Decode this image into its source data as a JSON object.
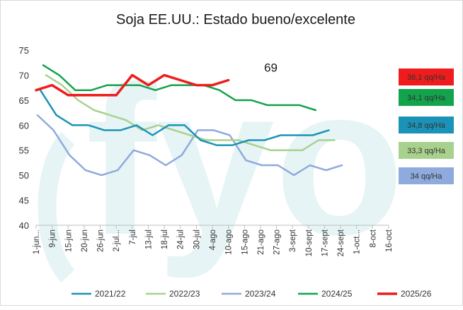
{
  "chart_data": {
    "type": "line",
    "title": "Soja EE.UU.: Estado bueno/excelente",
    "xlabel": "",
    "ylabel": "",
    "ylim": [
      40,
      75
    ],
    "yticks": [
      40,
      45,
      50,
      55,
      60,
      65,
      70,
      75
    ],
    "grid": false,
    "legend_position": "bottom",
    "categories": [
      "1-jun...",
      "9-jun",
      "15-jun",
      "20-jun",
      "26-jun",
      "2-jul...",
      "7-jul",
      "13-jul",
      "18-jul",
      "24-jul",
      "30-jul",
      "4-ago",
      "10-ago",
      "15-ago",
      "21-ago",
      "27-ago",
      "3-sept",
      "10-sept",
      "17-sept",
      "24-sept",
      "1-oct...",
      "8-oct",
      "16-oct"
    ],
    "series": [
      {
        "name": "2021/22",
        "color": "#1b93b8",
        "values": [
          67,
          62,
          60,
          60,
          59,
          59,
          60,
          58,
          60,
          60,
          57,
          56,
          56,
          57,
          57,
          58,
          58,
          58,
          59,
          null,
          null,
          null,
          null
        ],
        "offset": 0.6
      },
      {
        "name": "2022/23",
        "color": "#a9d18e",
        "values": [
          70,
          68,
          65,
          63,
          62,
          61,
          59,
          60,
          59,
          58,
          57,
          57,
          57,
          56,
          55,
          55,
          55,
          57,
          57,
          null,
          null,
          null,
          null
        ],
        "offset": 1.4
      },
      {
        "name": "2023/24",
        "color": "#8faadc",
        "values": [
          62,
          59,
          54,
          51,
          50,
          51,
          55,
          54,
          52,
          54,
          59,
          59,
          58,
          53,
          52,
          52,
          50,
          52,
          51,
          52,
          null,
          null,
          null
        ],
        "offset": 0.2
      },
      {
        "name": "2024/25",
        "color": "#13a34c",
        "values": [
          72,
          70,
          67,
          67,
          68,
          68,
          68,
          67,
          68,
          68,
          68,
          67,
          65,
          65,
          64,
          64,
          64,
          63,
          null,
          null,
          null,
          null,
          null
        ],
        "offset": 1.0
      },
      {
        "name": "2025/26",
        "color": "#ee1c1c",
        "values": [
          67,
          68,
          66,
          66,
          66,
          66,
          70,
          68,
          70,
          69,
          68,
          68,
          69,
          null,
          null,
          null,
          null,
          null,
          null,
          null,
          null,
          null,
          null
        ],
        "offset": 0.0
      }
    ],
    "annotations": [
      {
        "text": "69",
        "x": "27-ago",
        "y": 69
      }
    ],
    "yield_boxes": [
      {
        "text": "36,1 qq/Ha",
        "series": "2025/26",
        "color": "#ee1c1c"
      },
      {
        "text": "34,1 qq/Ha",
        "series": "2024/25",
        "color": "#13a34c"
      },
      {
        "text": "34,8 qq/Ha",
        "series": "2021/22",
        "color": "#1b93b8"
      },
      {
        "text": "33,3 qq/Ha",
        "series": "2022/23",
        "color": "#a9d18e"
      },
      {
        "text": "34 qq/Ha",
        "series": "2023/24",
        "color": "#8faadc"
      }
    ],
    "watermark": "fyo"
  }
}
